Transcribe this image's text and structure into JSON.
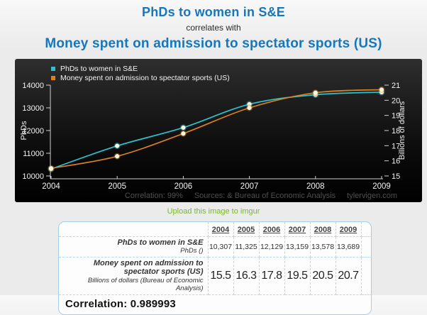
{
  "header": {
    "title_top": "PhDs to women in S&E",
    "connector": "correlates with",
    "title_bottom": "Money spent on admission to spectator sports (US)"
  },
  "chart_data": {
    "type": "line",
    "x": [
      2004,
      2005,
      2006,
      2007,
      2008,
      2009
    ],
    "series": [
      {
        "name": "PhDs to women in S&E",
        "axis": "left_axis",
        "color": "#2fc0ce",
        "marker_fill": "#fdf5dc",
        "values": [
          10307,
          11325,
          12129,
          13159,
          13578,
          13689
        ]
      },
      {
        "name": "Money spent on admission to spectator sports (US)",
        "axis": "right_axis",
        "color": "#d9801f",
        "marker_fill": "#fdf5dc",
        "values": [
          15.5,
          16.3,
          17.8,
          19.5,
          20.5,
          20.7
        ]
      }
    ],
    "left_axis": {
      "label": "PhDs",
      "min": 10000,
      "max": 14000,
      "ticks": [
        10000,
        11000,
        12000,
        13000,
        14000
      ]
    },
    "right_axis": {
      "label": "Billions of dollars",
      "min": 15,
      "max": 21,
      "ticks": [
        15,
        16,
        17,
        18,
        19,
        20,
        21
      ]
    },
    "grid": false,
    "legend_position": "top-left",
    "footer": {
      "correlation": "Correlation: 99%",
      "sources": "Sources:  & Bureau of Economic Analysis",
      "site": "tylervigen.com"
    },
    "axis_color": "#d0d0d0",
    "tick_text_color": "#f2f2f2"
  },
  "upload_link": "Upload this image to imgur",
  "table": {
    "years": [
      "2004",
      "2005",
      "2006",
      "2007",
      "2008",
      "2009"
    ],
    "rows": [
      {
        "label": "PhDs to women in S&E",
        "sublabel": "PhDs ()",
        "values": [
          "10,307",
          "11,325",
          "12,129",
          "13,159",
          "13,578",
          "13,689"
        ]
      },
      {
        "label": "Money spent on admission to spectator sports (US)",
        "sublabel": "Billions of dollars (Bureau of Economic Analysis)",
        "values": [
          "15.5",
          "16.3",
          "17.8",
          "19.5",
          "20.5",
          "20.7"
        ]
      }
    ],
    "correlation": "Correlation: 0.989993"
  }
}
